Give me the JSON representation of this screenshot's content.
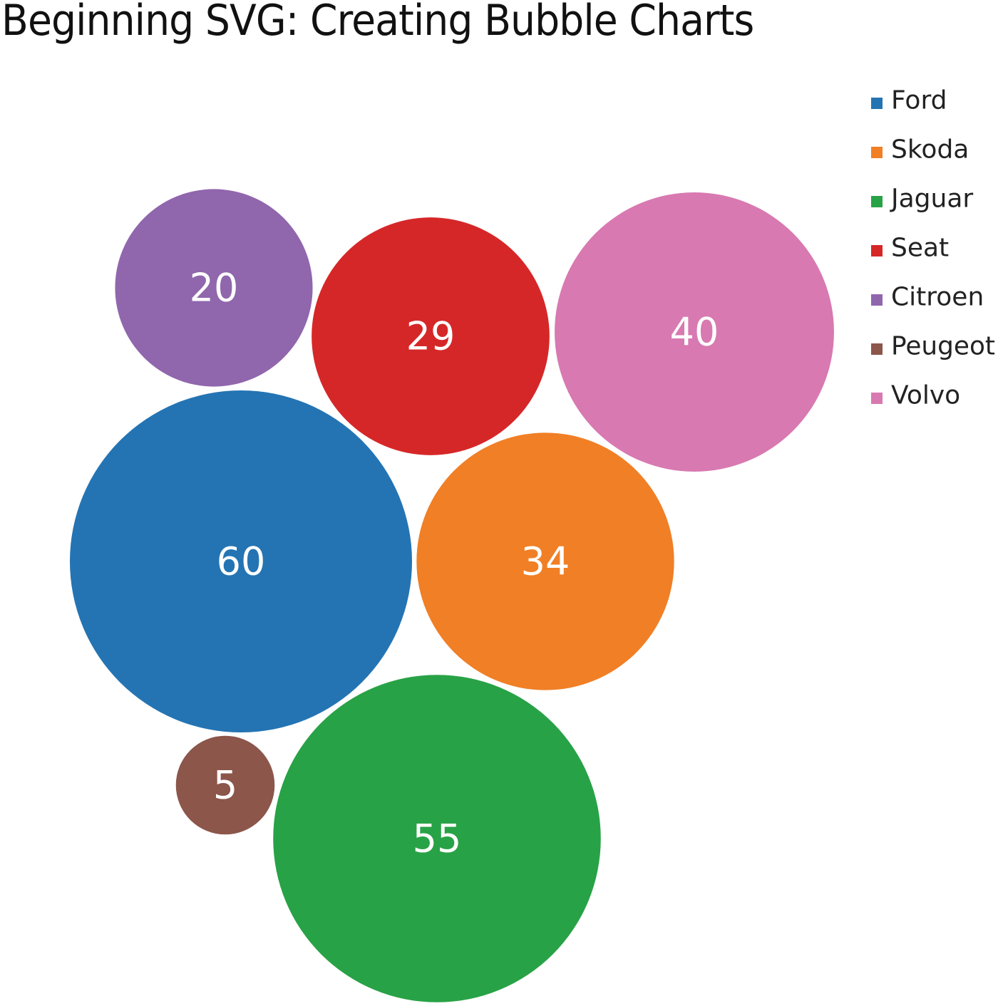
{
  "title": "Beginning SVG: Creating Bubble Charts",
  "chart_data": {
    "type": "bubble",
    "title": "Beginning SVG: Creating Bubble Charts",
    "legend_position": "top-right",
    "series": [
      {
        "name": "Ford",
        "value": 60,
        "color": "#2474b3"
      },
      {
        "name": "Skoda",
        "value": 34,
        "color": "#f07f26"
      },
      {
        "name": "Jaguar",
        "value": 55,
        "color": "#28a246"
      },
      {
        "name": "Seat",
        "value": 29,
        "color": "#d62728"
      },
      {
        "name": "Citroen",
        "value": 20,
        "color": "#9066ad"
      },
      {
        "name": "Peugeot",
        "value": 5,
        "color": "#8c564b"
      },
      {
        "name": "Volvo",
        "value": 40,
        "color": "#d879b1"
      }
    ]
  }
}
